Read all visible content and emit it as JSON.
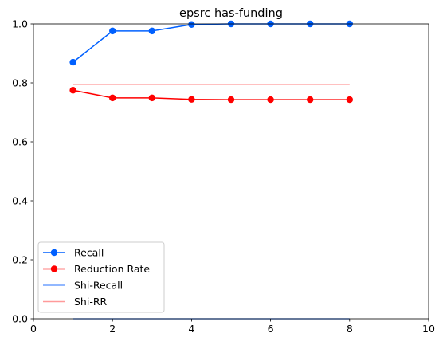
{
  "chart_data": {
    "type": "line",
    "title": "epsrc has-funding",
    "xlabel": "",
    "ylabel": "",
    "xlim": [
      0,
      10
    ],
    "ylim": [
      0,
      1
    ],
    "xticks": [
      0,
      2,
      4,
      6,
      8,
      10
    ],
    "xtick_labels": [
      "0",
      "2",
      "4",
      "6",
      "8",
      "10"
    ],
    "yticks": [
      0,
      0.2,
      0.4,
      0.6,
      0.8,
      1.0
    ],
    "ytick_labels": [
      "0.0",
      "0.2",
      "0.4",
      "0.6",
      "0.8",
      "1.0"
    ],
    "grid": false,
    "legend_position": "lower-left",
    "x": [
      1,
      2,
      3,
      4,
      5,
      6,
      7,
      8
    ],
    "series": [
      {
        "name": "Recall",
        "color": "#0060ff",
        "marker": "circle",
        "values": [
          0.87,
          0.976,
          0.976,
          0.998,
          1.0,
          1.0,
          1.0,
          1.0
        ]
      },
      {
        "name": "Reduction Rate",
        "color": "#ff0000",
        "marker": "circle",
        "values": [
          0.775,
          0.749,
          0.749,
          0.744,
          0.743,
          0.743,
          0.743,
          0.743
        ]
      },
      {
        "name": "Shi-Recall",
        "color": "#6fa0ff",
        "marker": "none",
        "x_range": [
          1,
          8
        ],
        "value": 0.0
      },
      {
        "name": "Shi-RR",
        "color": "#ff9a9a",
        "marker": "none",
        "x_range": [
          1,
          8
        ],
        "value": 0.795
      }
    ]
  }
}
